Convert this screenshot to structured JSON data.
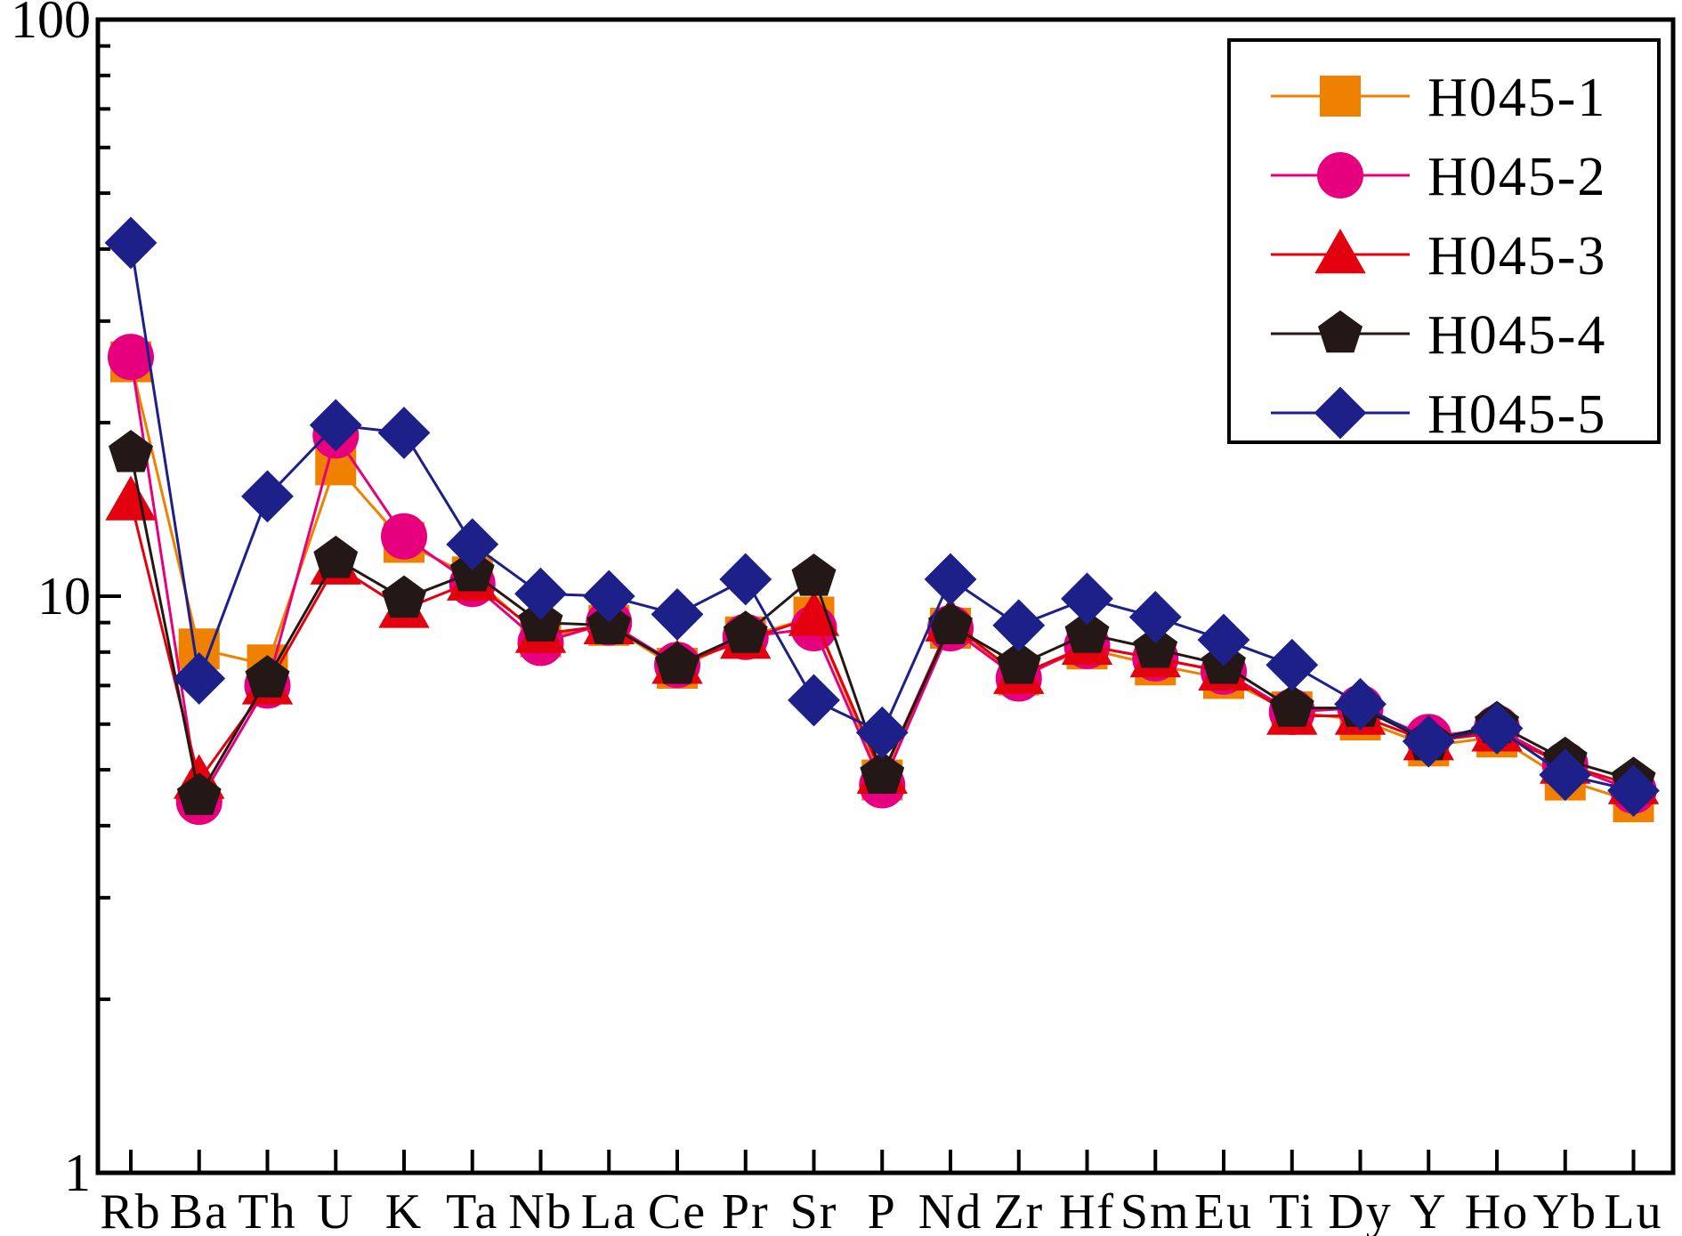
{
  "chart_data": {
    "type": "line",
    "title": "",
    "xlabel": "",
    "ylabel": "",
    "yscale": "log",
    "ylim": [
      1,
      100
    ],
    "y_ticks": [
      {
        "value": 1,
        "label": "1"
      },
      {
        "value": 10,
        "label": "10"
      },
      {
        "value": 100,
        "label": "100"
      }
    ],
    "grid": false,
    "legend_position": "top-right",
    "categories": [
      "Rb",
      "Ba",
      "Th",
      "U",
      "K",
      "Ta",
      "Nb",
      "La",
      "Ce",
      "Pr",
      "Sr",
      "P",
      "Nd",
      "Zr",
      "Hf",
      "Sm",
      "Eu",
      "Ti",
      "Dy",
      "Y",
      "Ho",
      "Yb",
      "Lu"
    ],
    "series": [
      {
        "name": "H045-1",
        "color": "#F08000",
        "marker": "square",
        "values": [
          25.5,
          8.1,
          7.6,
          16.9,
          12.4,
          10.8,
          8.5,
          8.9,
          7.5,
          8.5,
          9.2,
          4.8,
          8.8,
          7.3,
          8.1,
          7.6,
          7.2,
          6.3,
          6.1,
          5.5,
          5.7,
          4.8,
          4.4
        ]
      },
      {
        "name": "H045-2",
        "color": "#E6007E",
        "marker": "circle",
        "values": [
          26.0,
          4.4,
          7.0,
          19.0,
          12.7,
          10.5,
          8.3,
          9.0,
          7.6,
          8.5,
          8.8,
          4.7,
          8.8,
          7.2,
          8.2,
          7.8,
          7.4,
          6.3,
          6.4,
          5.7,
          5.9,
          5.1,
          4.6
        ]
      },
      {
        "name": "H045-3",
        "color": "#E3000F",
        "marker": "triangle",
        "values": [
          14.6,
          4.8,
          7.0,
          11.3,
          9.5,
          10.6,
          8.6,
          8.9,
          7.6,
          8.4,
          9.2,
          4.9,
          9.0,
          7.3,
          8.2,
          7.8,
          7.4,
          6.2,
          6.2,
          5.6,
          5.8,
          5.1,
          4.7
        ]
      },
      {
        "name": "H045-4",
        "color": "#231815",
        "marker": "pentagon",
        "values": [
          17.7,
          4.5,
          7.2,
          11.6,
          9.9,
          11.0,
          9.0,
          8.9,
          7.6,
          8.6,
          10.8,
          4.9,
          8.9,
          7.6,
          8.6,
          8.1,
          7.6,
          6.4,
          6.4,
          5.6,
          6.0,
          5.2,
          4.8
        ]
      },
      {
        "name": "H045-5",
        "color": "#1D2088",
        "marker": "diamond",
        "values": [
          41.0,
          7.2,
          14.9,
          19.8,
          19.2,
          12.3,
          10.1,
          10.0,
          9.3,
          10.7,
          6.6,
          5.8,
          10.7,
          8.9,
          9.9,
          9.2,
          8.4,
          7.6,
          6.5,
          5.6,
          5.9,
          4.9,
          4.6
        ]
      }
    ]
  }
}
